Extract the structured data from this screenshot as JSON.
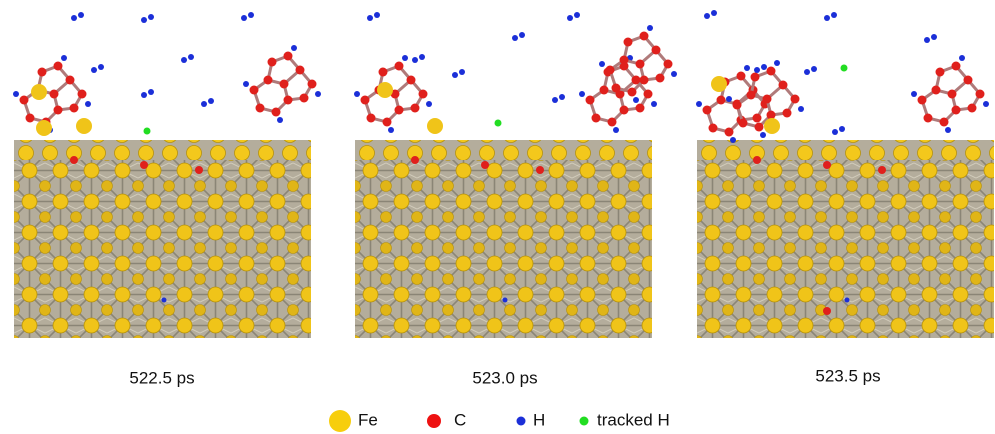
{
  "panels": [
    {
      "caption": "522.5 ps"
    },
    {
      "caption": "523.0 ps"
    },
    {
      "caption": "523.5 ps"
    }
  ],
  "legend": [
    {
      "label": "Fe"
    },
    {
      "label": "C"
    },
    {
      "label": "H"
    },
    {
      "label": "tracked H"
    }
  ]
}
